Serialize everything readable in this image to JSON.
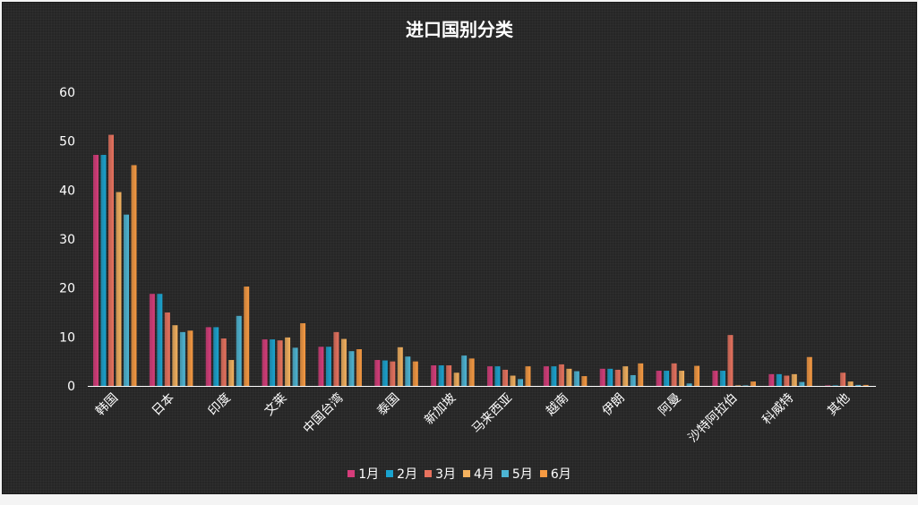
{
  "chart_data": {
    "type": "bar",
    "title": "进口国别分类",
    "categories": [
      "韩国",
      "日本",
      "印度",
      "文莱",
      "中国台湾",
      "泰国",
      "新加坡",
      "马来西亚",
      "越南",
      "伊朗",
      "阿曼",
      "沙特阿拉伯",
      "科威特",
      "其他"
    ],
    "ylim": [
      0,
      60
    ],
    "yticks": [
      0,
      10,
      20,
      30,
      40,
      50,
      60
    ],
    "grid": false,
    "legend_position": "bottom",
    "series": [
      {
        "name": "1月",
        "color": "#d63c7a",
        "values": [
          47.2,
          18.8,
          12.0,
          9.5,
          8.0,
          5.3,
          4.2,
          4.0,
          4.0,
          3.5,
          3.1,
          3.1,
          2.4,
          0.1
        ]
      },
      {
        "name": "2月",
        "color": "#1aa3cf",
        "values": [
          47.2,
          18.8,
          12.0,
          9.5,
          8.0,
          5.2,
          4.2,
          4.0,
          4.0,
          3.5,
          3.1,
          3.1,
          2.4,
          0.1
        ]
      },
      {
        "name": "3月",
        "color": "#e8725e",
        "values": [
          51.3,
          15.0,
          9.7,
          9.3,
          11.0,
          5.0,
          4.2,
          3.3,
          4.4,
          3.3,
          4.6,
          10.4,
          2.1,
          2.7
        ]
      },
      {
        "name": "4月",
        "color": "#f4b15e",
        "values": [
          39.6,
          12.4,
          5.3,
          9.9,
          9.6,
          7.9,
          2.7,
          2.1,
          3.5,
          4.0,
          3.1,
          0.0,
          2.4,
          0.9
        ]
      },
      {
        "name": "5月",
        "color": "#4db5d4",
        "values": [
          35.0,
          11.0,
          14.3,
          7.8,
          7.1,
          6.0,
          6.2,
          1.4,
          3.0,
          2.2,
          0.5,
          0.0,
          0.8,
          0.2
        ]
      },
      {
        "name": "6月",
        "color": "#f79a42",
        "values": [
          45.1,
          11.3,
          20.3,
          12.8,
          7.5,
          5.0,
          5.6,
          4.0,
          2.0,
          4.6,
          4.1,
          0.9,
          5.9,
          0.2
        ]
      }
    ]
  }
}
